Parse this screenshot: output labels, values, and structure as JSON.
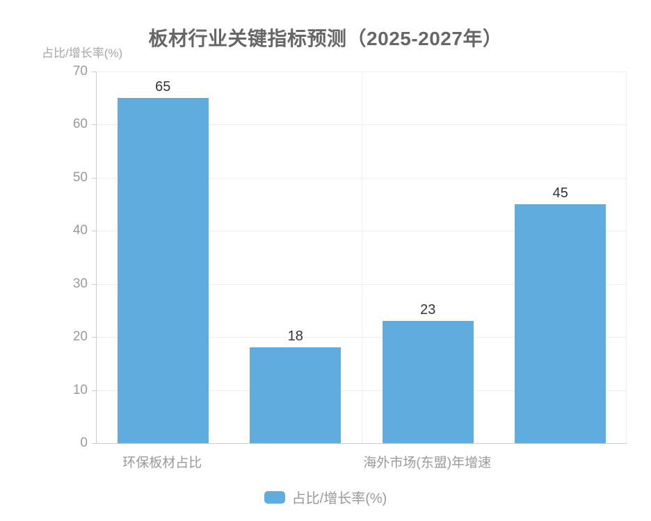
{
  "title": "板材行业关键指标预测（2025-2027年）",
  "y_axis_name": "占比/增长率(%)",
  "legend": {
    "label": "占比/增长率(%)",
    "position": "bottom"
  },
  "colors": {
    "bar": "#61ACDE",
    "title": "#666666",
    "axis_line": "#cccccc",
    "grid_line": "#eeeeee",
    "tick_label": "#999999",
    "value_label": "#333333",
    "axis_name": "#a6a6a6",
    "legend_text": "#999999",
    "background": "#ffffff"
  },
  "chart_data": {
    "type": "bar",
    "title": "板材行业关键指标预测（2025-2027年）",
    "xlabel": "",
    "ylabel": "占比/增长率(%)",
    "categories": [
      "环保板材占比",
      "",
      "海外市场(东盟)年增速",
      ""
    ],
    "visible_x_labels": [
      "环保板材占比",
      "海外市场(东盟)年增速"
    ],
    "series": [
      {
        "name": "占比/增长率(%)",
        "values": [
          65,
          18,
          23,
          45
        ],
        "color": "#61ACDE"
      }
    ],
    "value_labels": [
      "65",
      "18",
      "23",
      "45"
    ],
    "ylim": [
      0,
      70
    ],
    "y_ticks": [
      0,
      10,
      20,
      30,
      40,
      50,
      60,
      70
    ],
    "grid": true,
    "vertical_split_line_at_category_boundary": 2,
    "legend_position": "bottom"
  }
}
